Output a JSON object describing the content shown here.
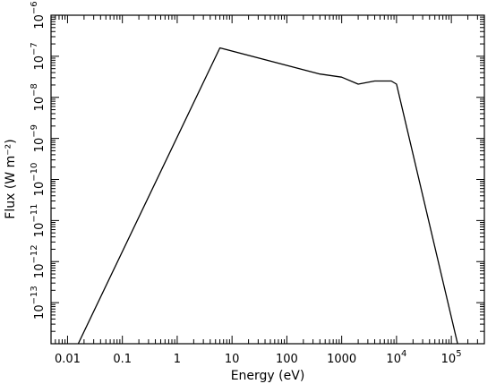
{
  "chart_data": {
    "type": "line",
    "title": "",
    "xlabel": "Energy (eV)",
    "ylabel": "Flux (W m⁻²)",
    "x_scale": "log",
    "y_scale": "log",
    "xlim": [
      0.005,
      400000
    ],
    "ylim": [
      1e-14,
      1e-06
    ],
    "x_ticks": [
      {
        "value": 0.01,
        "label": "0.01"
      },
      {
        "value": 0.1,
        "label": "0.1"
      },
      {
        "value": 1,
        "label": "1"
      },
      {
        "value": 10,
        "label": "10"
      },
      {
        "value": 100,
        "label": "100"
      },
      {
        "value": 1000,
        "label": "1000"
      },
      {
        "value": 10000,
        "base": "10",
        "exp": "4"
      },
      {
        "value": 100000,
        "base": "10",
        "exp": "5"
      }
    ],
    "y_ticks": [
      {
        "value": 1e-13,
        "base": "10",
        "exp": "−13"
      },
      {
        "value": 1e-12,
        "base": "10",
        "exp": "−12"
      },
      {
        "value": 1e-11,
        "base": "10",
        "exp": "−11"
      },
      {
        "value": 1e-10,
        "base": "10",
        "exp": "−10"
      },
      {
        "value": 1e-09,
        "base": "10",
        "exp": "−9"
      },
      {
        "value": 1e-08,
        "base": "10",
        "exp": "−8"
      },
      {
        "value": 1e-07,
        "base": "10",
        "exp": "−7"
      },
      {
        "value": 1e-06,
        "base": "10",
        "exp": "−6"
      }
    ],
    "grid": false,
    "series": [
      {
        "x": [
          0.0157,
          6,
          400,
          1000,
          2000,
          4000,
          8000,
          10000,
          130000
        ],
        "y": [
          1e-14,
          1.6e-07,
          3.7e-08,
          3.1e-08,
          2.1e-08,
          2.5e-08,
          2.5e-08,
          2.1e-08,
          1e-14
        ]
      }
    ]
  }
}
